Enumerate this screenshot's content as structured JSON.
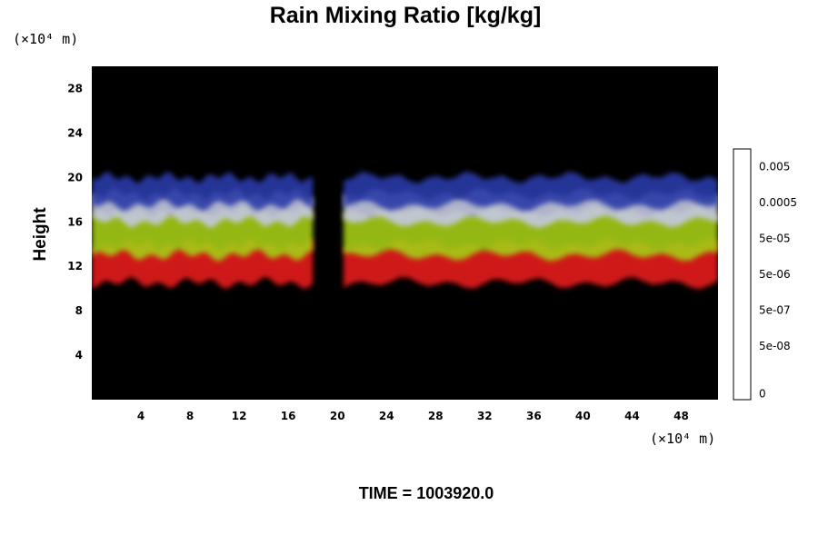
{
  "chart_data": {
    "type": "heatmap",
    "title": "Rain Mixing Ratio [kg/kg]",
    "xlabel": "",
    "ylabel": "Height",
    "x_unit": "(×10⁴ m)",
    "y_unit": "(×10⁴ m)",
    "x_ticks": [
      4,
      8,
      12,
      16,
      20,
      24,
      28,
      32,
      36,
      40,
      44,
      48
    ],
    "y_ticks": [
      4,
      8,
      12,
      16,
      20,
      24,
      28
    ],
    "xlim": [
      0,
      51
    ],
    "ylim": [
      0,
      30
    ],
    "background_color": "#000000",
    "colorbar": {
      "tick_labels": [
        "0.005",
        "0.0005",
        "5e-05",
        "5e-06",
        "5e-07",
        "5e-08",
        "0"
      ],
      "tick_levels": [
        19,
        16,
        13,
        10,
        7,
        4,
        0
      ],
      "n_levels": 21
    },
    "layers": [
      {
        "name": "",
        "color": "#e61e1e",
        "height_range": [
          10.5,
          14
        ]
      },
      {
        "name": "",
        "color": "#a5cc14",
        "height_range": [
          13,
          17
        ]
      },
      {
        "name": "",
        "color": "#c4c8e2",
        "height_range": [
          16,
          18.5
        ]
      },
      {
        "name": "",
        "color": "#2a3aa8",
        "height_range": [
          17.5,
          20
        ]
      }
    ],
    "gap_x_range": [
      18,
      20.5
    ]
  },
  "footer": {
    "time_label": "TIME = 1003920.0"
  }
}
